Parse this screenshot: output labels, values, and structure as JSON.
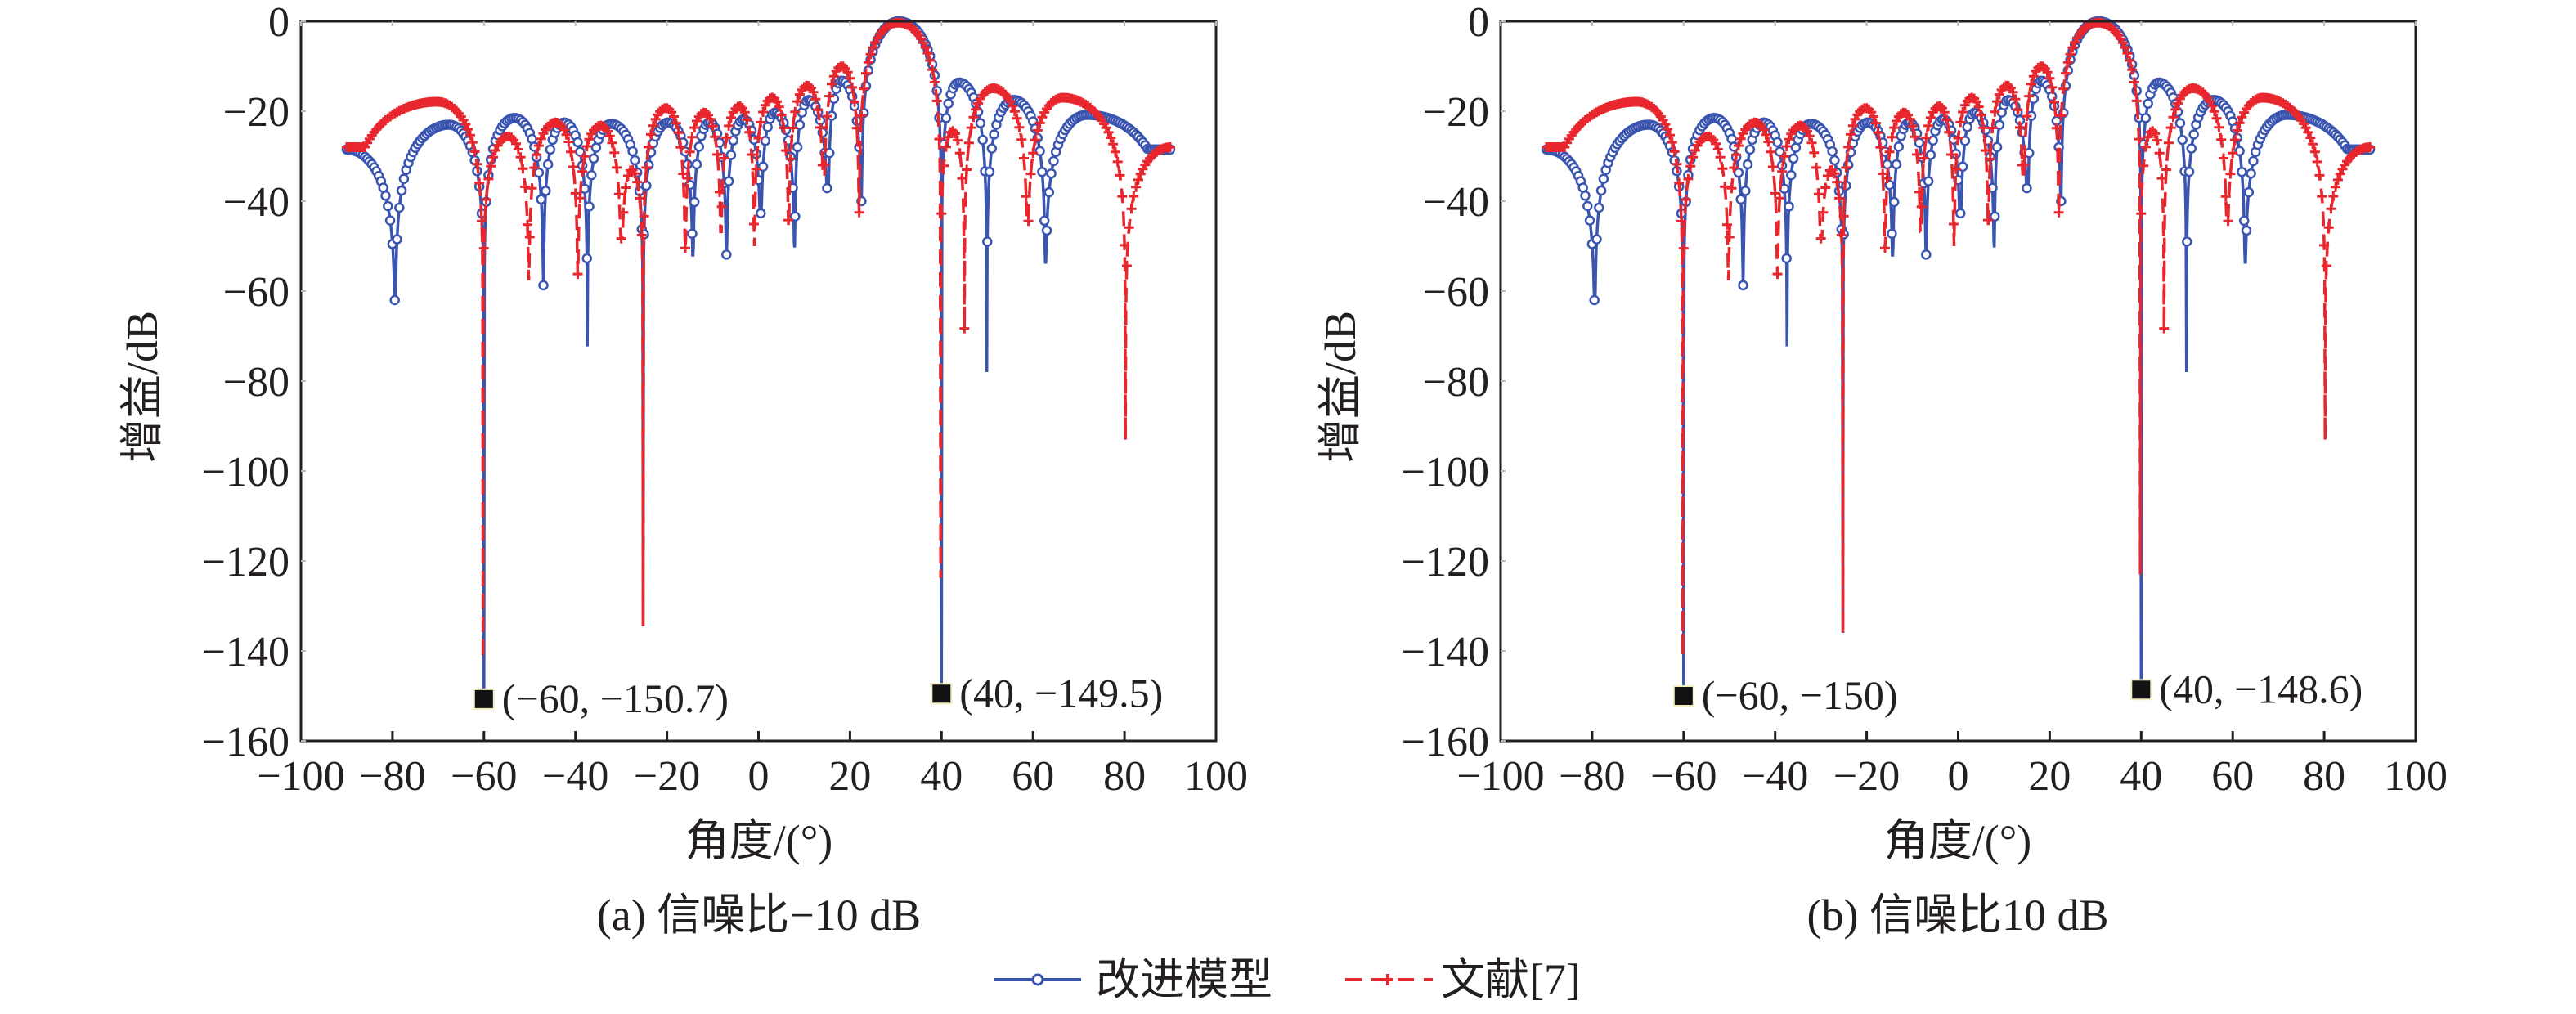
{
  "colors": {
    "improved": "#3a55b0",
    "reference": "#e8262d",
    "axis": "#231f20",
    "marker_square": "#111111"
  },
  "legend": {
    "placement": "bottom-center",
    "items": [
      {
        "label": "改进模型",
        "color": "#3a55b0",
        "marker": "circle",
        "line": "solid"
      },
      {
        "label": "文献[7]",
        "color": "#e8262d",
        "marker": "plus",
        "line": "dashed"
      }
    ]
  },
  "chart_data": [
    {
      "type": "line",
      "caption": "(a) 信噪比−10 dB",
      "xlabel": "角度/(°)",
      "ylabel": "增益/dB",
      "xlim": [
        -100,
        100
      ],
      "ylim": [
        -160,
        0
      ],
      "xticks": [
        -100,
        -80,
        -60,
        -40,
        -20,
        0,
        20,
        40,
        60,
        80,
        100
      ],
      "yticks": [
        0,
        -20,
        -40,
        -60,
        -80,
        -100,
        -120,
        -140,
        -160
      ],
      "grid": false,
      "annotations": [
        {
          "x": -60,
          "y": -150.7,
          "label": "(−60, −150.7)"
        },
        {
          "x": 40,
          "y": -149.5,
          "label": "(40, −149.5)"
        }
      ],
      "series": [
        {
          "name": "改进模型",
          "points": [
            [
              -90,
              -28.5
            ],
            [
              -79.4,
              -62
            ],
            [
              -67.6,
              -23
            ],
            [
              -60,
              -150.7
            ],
            [
              -53.3,
              -21.5
            ],
            [
              -47,
              -58.7
            ],
            [
              -42.5,
              -22.5
            ],
            [
              -37.4,
              -72.3
            ],
            [
              -32.2,
              -22.8
            ],
            [
              -25.2,
              -134.5
            ],
            [
              -19.7,
              -22.5
            ],
            [
              -14.3,
              -52
            ],
            [
              -10.7,
              -22.5
            ],
            [
              -7,
              -51.9
            ],
            [
              -3.2,
              -21.8
            ],
            [
              0.5,
              -42.7
            ],
            [
              3.6,
              -20.3
            ],
            [
              7.9,
              -50.3
            ],
            [
              11,
              -17.5
            ],
            [
              15.2,
              -37.1
            ],
            [
              18.2,
              -13.2
            ],
            [
              22.5,
              -40
            ],
            [
              30.7,
              0
            ],
            [
              40,
              -149.5
            ],
            [
              43.8,
              -13.6
            ],
            [
              49.9,
              -78
            ],
            [
              55.8,
              -17.5
            ],
            [
              62.7,
              -53.6
            ],
            [
              71.8,
              -20.8
            ],
            [
              90,
              -28.5
            ]
          ]
        },
        {
          "name": "文献[7]",
          "points": [
            [
              -90,
              -28
            ],
            [
              -70.2,
              -17.9
            ],
            [
              -60.2,
              -141.7
            ],
            [
              -54.7,
              -25.6
            ],
            [
              -50.2,
              -57.6
            ],
            [
              -44.3,
              -22.5
            ],
            [
              -39.5,
              -56.2
            ],
            [
              -34.5,
              -23.2
            ],
            [
              -30,
              -48.3
            ],
            [
              -27.7,
              -33
            ],
            [
              -25.2,
              -134.5
            ],
            [
              -20.2,
              -19.3
            ],
            [
              -16,
              -50.4
            ],
            [
              -11.8,
              -20.3
            ],
            [
              -8.2,
              -46.8
            ],
            [
              -4.1,
              -18.9
            ],
            [
              -0.9,
              -50
            ],
            [
              3,
              -17
            ],
            [
              6.6,
              -45.4
            ],
            [
              10.7,
              -14.3
            ],
            [
              14.3,
              -34
            ],
            [
              18.2,
              -10
            ],
            [
              22,
              -42.5
            ],
            [
              30.5,
              -0.3
            ],
            [
              39.8,
              -123.8
            ],
            [
              42.4,
              -24.4
            ],
            [
              45,
              -68.3
            ],
            [
              51.3,
              -14.9
            ],
            [
              58.8,
              -44.4
            ],
            [
              66.5,
              -17
            ],
            [
              80.2,
              -93.1
            ],
            [
              90,
              -28
            ]
          ]
        }
      ]
    },
    {
      "type": "line",
      "caption": "(b) 信噪比10 dB",
      "xlabel": "角度/(°)",
      "ylabel": "增益/dB",
      "xlim": [
        -100,
        100
      ],
      "ylim": [
        -160,
        0
      ],
      "xticks": [
        -100,
        -80,
        -60,
        -40,
        -20,
        0,
        20,
        40,
        60,
        80,
        100
      ],
      "yticks": [
        0,
        -20,
        -40,
        -60,
        -80,
        -100,
        -120,
        -140,
        -160
      ],
      "grid": false,
      "annotations": [
        {
          "x": -60,
          "y": -150,
          "label": "(−60, −150)"
        },
        {
          "x": 40,
          "y": -148.6,
          "label": "(40, −148.6)"
        }
      ],
      "series": [
        {
          "name": "改进模型",
          "points": [
            [
              -90,
              -28.5
            ],
            [
              -79.4,
              -62
            ],
            [
              -67.6,
              -23
            ],
            [
              -60,
              -150
            ],
            [
              -53.3,
              -21.5
            ],
            [
              -47,
              -58.7
            ],
            [
              -42.5,
              -22.5
            ],
            [
              -37.4,
              -72.3
            ],
            [
              -32.2,
              -22.8
            ],
            [
              -25.2,
              -136
            ],
            [
              -19.7,
              -22.5
            ],
            [
              -14.3,
              -52
            ],
            [
              -10.7,
              -22.5
            ],
            [
              -7,
              -51.9
            ],
            [
              -3.2,
              -21.8
            ],
            [
              0.5,
              -42.7
            ],
            [
              3.6,
              -20.3
            ],
            [
              7.9,
              -50.3
            ],
            [
              11,
              -17.5
            ],
            [
              15.2,
              -37.1
            ],
            [
              18.2,
              -13.2
            ],
            [
              22.5,
              -40
            ],
            [
              30.7,
              0
            ],
            [
              40,
              -148.6
            ],
            [
              43.8,
              -13.6
            ],
            [
              49.9,
              -78
            ],
            [
              55.8,
              -17.5
            ],
            [
              62.7,
              -53.6
            ],
            [
              71.8,
              -20.8
            ],
            [
              90,
              -28.5
            ]
          ]
        },
        {
          "name": "文献[7]",
          "points": [
            [
              -90,
              -28
            ],
            [
              -70.2,
              -17.9
            ],
            [
              -60.2,
              -141
            ],
            [
              -54.7,
              -25.6
            ],
            [
              -50.2,
              -57.6
            ],
            [
              -44.3,
              -22.5
            ],
            [
              -39.5,
              -56.2
            ],
            [
              -34.5,
              -23.2
            ],
            [
              -30,
              -48.3
            ],
            [
              -27.7,
              -33
            ],
            [
              -25.2,
              -136
            ],
            [
              -20.2,
              -19.3
            ],
            [
              -16,
              -50.4
            ],
            [
              -11.8,
              -20.3
            ],
            [
              -8.2,
              -46.8
            ],
            [
              -4.1,
              -18.9
            ],
            [
              -0.9,
              -50
            ],
            [
              3,
              -17
            ],
            [
              6.6,
              -45.4
            ],
            [
              10.7,
              -14.3
            ],
            [
              14.3,
              -34
            ],
            [
              18.2,
              -10
            ],
            [
              22,
              -42.5
            ],
            [
              30.5,
              -0.3
            ],
            [
              39.8,
              -123
            ],
            [
              42.4,
              -24.4
            ],
            [
              45,
              -68.3
            ],
            [
              51.3,
              -14.9
            ],
            [
              58.8,
              -44.4
            ],
            [
              66.5,
              -17
            ],
            [
              80.2,
              -93.1
            ],
            [
              90,
              -28
            ]
          ]
        }
      ]
    }
  ]
}
